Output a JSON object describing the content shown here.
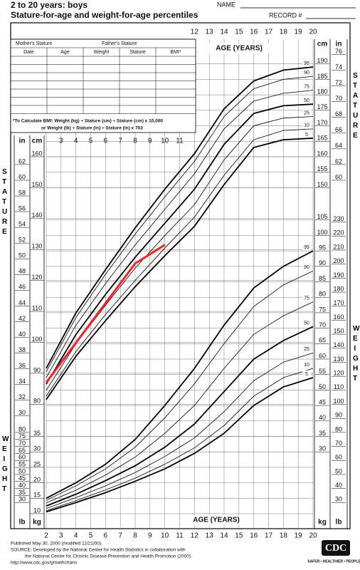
{
  "header": {
    "title": "2 to 20 years: boys",
    "subtitle": "Stature-for-age and weight-for-age percentiles",
    "name_label": "NAME",
    "record_label": "RECORD #"
  },
  "record_table": {
    "parents": [
      "Mother's Stature",
      "Father's Stature"
    ],
    "columns": [
      "Date",
      "Age",
      "Weight",
      "Stature",
      "BMI*"
    ],
    "bmi_note": [
      "*To Calculate BMI: Weight (kg) ÷ Stature (cm) ÷ Stature (cm) x 10,000",
      "or Weight (lb) ÷ Stature (in) ÷ Stature (in) x 703"
    ]
  },
  "axis_titles": {
    "age_top": "AGE (YEARS)",
    "age_bottom": "AGE (YEARS)",
    "stature": "STATURE",
    "weight": "WEIGHT"
  },
  "units": {
    "in": "in",
    "cm": "cm",
    "lb": "lb",
    "kg": "kg"
  },
  "footer": {
    "lines": [
      "Published May 30, 2000 (modified 11/21/00).",
      "SOURCE: Developed by the National Center for Health Statistics in collaboration with",
      "the National Center for Chronic Disease Prevention and Health Promotion (2000).",
      "http://www.cdc.gov/growthcharts"
    ],
    "logo": "CDC",
    "slogan": "SAFER • HEALTHIER • PEOPLE™"
  },
  "chart_data": [
    {
      "type": "line",
      "x": [
        2,
        4,
        6,
        8,
        10,
        12,
        14,
        16,
        18,
        20
      ],
      "xlim": [
        2,
        20
      ],
      "xticks": [
        2,
        3,
        4,
        5,
        6,
        7,
        8,
        9,
        10,
        11,
        12,
        13,
        14,
        15,
        16,
        17,
        18,
        19,
        20
      ],
      "ylim": [
        75,
        198
      ],
      "yticks": [
        80,
        90,
        100,
        110,
        120,
        130,
        140,
        150,
        160
      ],
      "y2lim": [
        75,
        198
      ],
      "y2ticks": [
        150,
        155,
        160,
        165,
        170,
        175,
        180,
        185,
        190
      ],
      "inch_ticks_left": [
        30,
        32,
        34,
        36,
        38,
        40,
        42,
        44,
        46,
        48,
        50,
        52,
        54,
        56,
        58,
        60,
        62
      ],
      "inch_ticks_right": [
        60,
        62,
        64,
        66,
        68,
        70,
        72,
        74,
        76
      ],
      "grid": true,
      "series": [
        {
          "name": "95",
          "color": "#000000",
          "width": 1.8,
          "values": [
            91.6,
            109.5,
            123.5,
            137,
            149.5,
            161,
            175.5,
            184.5,
            188,
            189
          ]
        },
        {
          "name": "90",
          "color": "#000000",
          "width": 0.8,
          "values": [
            90.5,
            108,
            122,
            135,
            147,
            158.5,
            173,
            182,
            185,
            186
          ]
        },
        {
          "name": "75",
          "color": "#000000",
          "width": 0.8,
          "values": [
            88.6,
            105.5,
            119,
            131.5,
            143,
            154.5,
            169,
            178,
            180.5,
            181.5
          ]
        },
        {
          "name": "50",
          "color": "#000000",
          "width": 1.8,
          "values": [
            86.5,
            102.5,
            115.5,
            127.5,
            138.5,
            149.5,
            164,
            174,
            176.5,
            177
          ]
        },
        {
          "name": "25",
          "color": "#000000",
          "width": 0.8,
          "values": [
            84.5,
            99.5,
            112,
            124,
            134.5,
            144.5,
            159,
            170,
            172.5,
            173
          ]
        },
        {
          "name": "10",
          "color": "#000000",
          "width": 0.8,
          "values": [
            82.6,
            97,
            109,
            120,
            130.5,
            140.5,
            154,
            165.5,
            168.5,
            169
          ]
        },
        {
          "name": "5",
          "color": "#000000",
          "width": 1.8,
          "values": [
            81.5,
            95.5,
            107,
            118,
            128,
            137.5,
            151,
            163,
            165.5,
            166
          ]
        },
        {
          "color": "#e8282d",
          "width": 3,
          "x": [
            2,
            8,
            10
          ],
          "values": [
            87,
            125.5,
            131.5
          ]
        }
      ]
    },
    {
      "type": "line",
      "x": [
        2,
        4,
        6,
        8,
        10,
        12,
        14,
        16,
        18,
        20
      ],
      "xlim": [
        2,
        20
      ],
      "xticks": [
        2,
        3,
        4,
        5,
        6,
        7,
        8,
        9,
        10,
        11,
        12,
        13,
        14,
        15,
        16,
        17,
        18,
        19,
        20
      ],
      "ylim": [
        7,
        108
      ],
      "yticks": [
        10,
        15,
        20,
        25,
        30,
        35
      ],
      "y2lim": [
        7,
        108
      ],
      "y2ticks": [
        30,
        35,
        40,
        45,
        50,
        55,
        60,
        65,
        70,
        75,
        80,
        85,
        90,
        95,
        100,
        105
      ],
      "lb_ticks_left": [
        30,
        35,
        40,
        45,
        50,
        55,
        60,
        65,
        70,
        75,
        80
      ],
      "lb_ticks_right": [
        30,
        40,
        50,
        60,
        70,
        80,
        90,
        100,
        110,
        120,
        130,
        140,
        150,
        160,
        170,
        180,
        190,
        200,
        210,
        220,
        230
      ],
      "grid": true,
      "series": [
        {
          "name": "95",
          "color": "#000000",
          "width": 1.8,
          "values": [
            15,
            20,
            26,
            34,
            45,
            57,
            71,
            83,
            90,
            95
          ]
        },
        {
          "name": "90",
          "color": "#000000",
          "width": 0.8,
          "values": [
            14.3,
            19,
            24.5,
            31.5,
            41,
            52,
            65,
            77,
            84,
            88.5
          ]
        },
        {
          "name": "75",
          "color": "#000000",
          "width": 0.8,
          "values": [
            13.5,
            17.6,
            22.5,
            28.3,
            36,
            45,
            57,
            68,
            74,
            78.5
          ]
        },
        {
          "name": "50",
          "color": "#000000",
          "width": 1.8,
          "values": [
            12.5,
            16.3,
            20.7,
            25.5,
            31.5,
            39,
            49.5,
            60,
            66,
            70.5
          ]
        },
        {
          "name": "25",
          "color": "#000000",
          "width": 0.8,
          "values": [
            11.7,
            15.2,
            19,
            23.3,
            28.5,
            34.5,
            43,
            53,
            59,
            62
          ]
        },
        {
          "name": "10",
          "color": "#000000",
          "width": 0.8,
          "values": [
            11,
            14.2,
            17.7,
            21.5,
            26,
            31.3,
            38.5,
            48,
            54,
            57
          ]
        },
        {
          "name": "5",
          "color": "#000000",
          "width": 1.8,
          "values": [
            10.6,
            13.6,
            16.8,
            20.5,
            24.5,
            29.5,
            36,
            45,
            51,
            54
          ]
        }
      ]
    }
  ]
}
